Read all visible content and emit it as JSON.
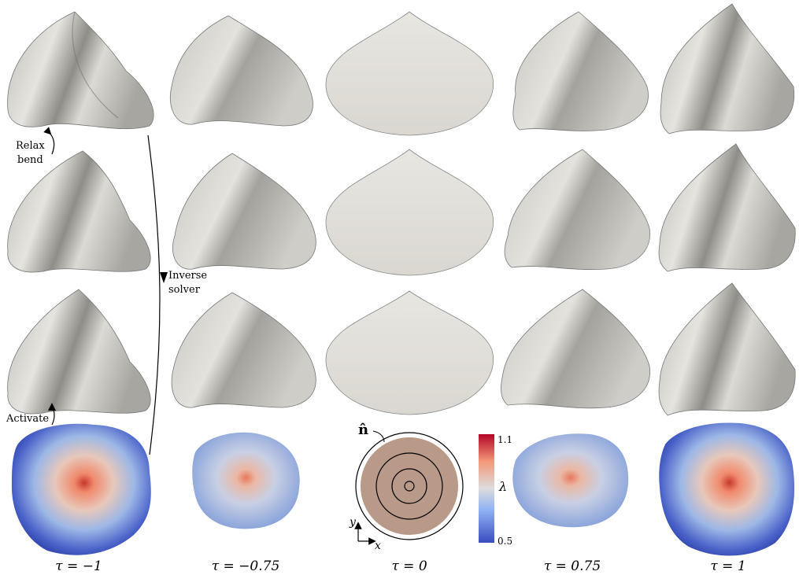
{
  "annotations": {
    "relax_line1": "Relax",
    "relax_line2": "bend",
    "inverse_line1": "Inverse",
    "inverse_line2": "solver",
    "activate": "Activate"
  },
  "columns": [
    {
      "tau_label": "τ = −1"
    },
    {
      "tau_label": "τ = −0.75"
    },
    {
      "tau_label": "τ = 0"
    },
    {
      "tau_label": "τ = 0.75"
    },
    {
      "tau_label": "τ = 1"
    }
  ],
  "schematic": {
    "normal_label": "n̂",
    "axis_y": "y",
    "axis_x": "x"
  },
  "colorbar": {
    "max_label": "1.1",
    "min_label": "0.5",
    "symbol": "λ",
    "colors": [
      "#3b4cc0",
      "#8fb1f3",
      "#dddddd",
      "#f4987a",
      "#b40426"
    ]
  },
  "colors": {
    "shell_light": "#e4e2dc",
    "shell_dark": "#8e8c87",
    "disk_fill": "#b99a88"
  }
}
